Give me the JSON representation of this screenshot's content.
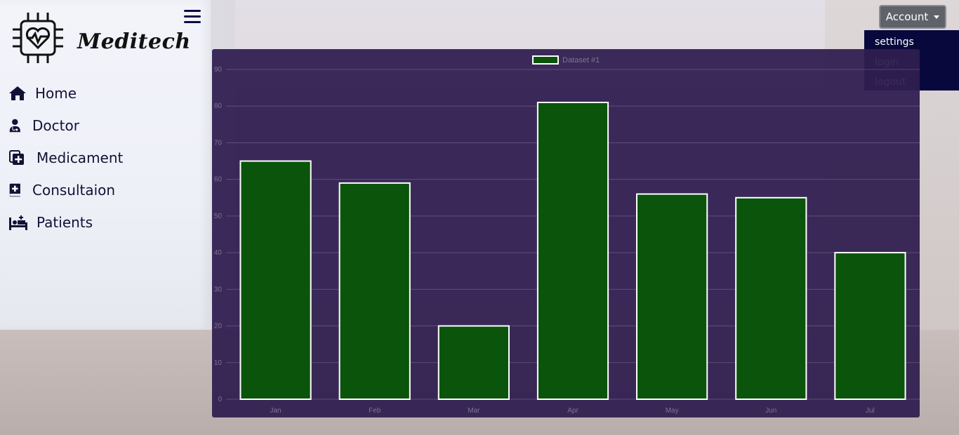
{
  "logo": {
    "text": "Meditech"
  },
  "sidebar": {
    "items": [
      {
        "label": "Home",
        "icon": "home-icon"
      },
      {
        "label": "Doctor",
        "icon": "doctor-icon"
      },
      {
        "label": "Medicament",
        "icon": "medicament-icon"
      },
      {
        "label": "Consultaion",
        "icon": "consultation-icon"
      },
      {
        "label": "Patients",
        "icon": "patients-icon"
      }
    ]
  },
  "header": {
    "account_label": "Account",
    "dropdown": [
      {
        "label": "settings"
      },
      {
        "label": "login"
      },
      {
        "label": "logout"
      }
    ]
  },
  "colors": {
    "bar_fill": "#0b540b",
    "bar_border": "#ffffff",
    "panel": "#301e50",
    "nav_text": "#111236",
    "dropdown_bg": "#08083d"
  },
  "chart_data": {
    "type": "bar",
    "categories": [
      "Jan",
      "Feb",
      "Mar",
      "Apr",
      "May",
      "Jun",
      "Jul"
    ],
    "series": [
      {
        "name": "Dataset #1",
        "values": [
          65,
          59,
          20,
          81,
          56,
          55,
          40
        ]
      }
    ],
    "ylim": [
      0,
      90
    ],
    "yticks": [
      0,
      10,
      20,
      30,
      40,
      50,
      60,
      70,
      80,
      90
    ],
    "grid": true,
    "legend": "top"
  }
}
